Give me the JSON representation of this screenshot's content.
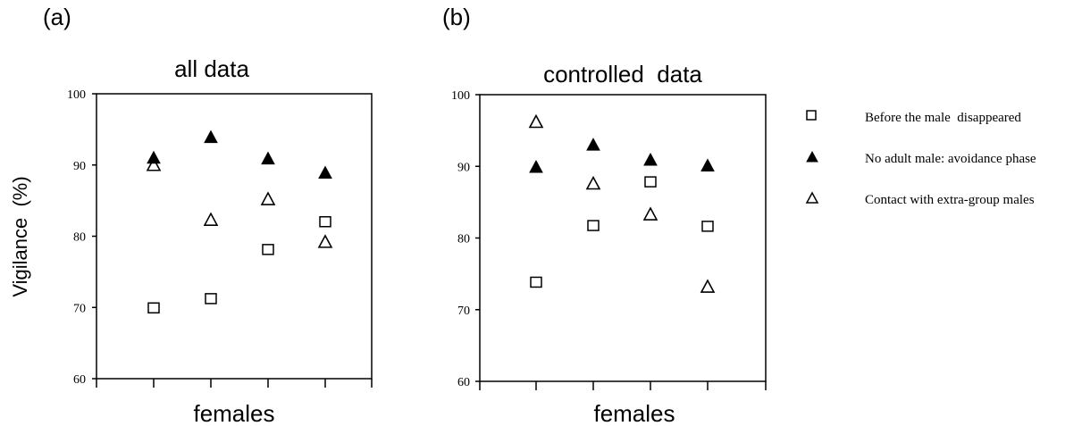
{
  "chart_data": [
    {
      "panel_label": "(a)",
      "type": "scatter",
      "title": "all data",
      "xlabel": "females",
      "ylabel": "Vigilance  (%)",
      "ylim": [
        60,
        100
      ],
      "yticks": [
        60,
        70,
        80,
        90,
        100
      ],
      "x": [
        1,
        2,
        3,
        4
      ],
      "series": [
        {
          "name": "Before the male  disappeared",
          "marker": "open-square",
          "values": [
            70,
            71.3,
            78.2,
            82.1
          ]
        },
        {
          "name": "No adult male: avoidance phase",
          "marker": "filled-triangle",
          "values": [
            91,
            93.9,
            90.9,
            88.9
          ]
        },
        {
          "name": "Contact with extra-group males",
          "marker": "open-triangle",
          "values": [
            90,
            82.3,
            85.2,
            79.2
          ]
        }
      ]
    },
    {
      "panel_label": "(b)",
      "type": "scatter",
      "title": "controlled  data",
      "xlabel": "females",
      "ylabel": "",
      "ylim": [
        60,
        100
      ],
      "yticks": [
        60,
        70,
        80,
        90,
        100
      ],
      "x": [
        1,
        2,
        3,
        4
      ],
      "series": [
        {
          "name": "Before the male  disappeared",
          "marker": "open-square",
          "values": [
            73.9,
            81.8,
            87.9,
            81.7
          ]
        },
        {
          "name": "No adult male: avoidance phase",
          "marker": "filled-triangle",
          "values": [
            89.9,
            93,
            90.9,
            90.1
          ]
        },
        {
          "name": "Contact with extra-group males",
          "marker": "open-triangle",
          "values": [
            96.2,
            87.6,
            83.3,
            73.2
          ]
        }
      ]
    }
  ],
  "legend": {
    "placement": "right",
    "items": [
      {
        "label": "Before the male  disappeared",
        "marker": "open-square"
      },
      {
        "label": "No adult male: avoidance phase",
        "marker": "filled-triangle"
      },
      {
        "label": "Contact with extra-group males",
        "marker": "open-triangle"
      }
    ]
  }
}
